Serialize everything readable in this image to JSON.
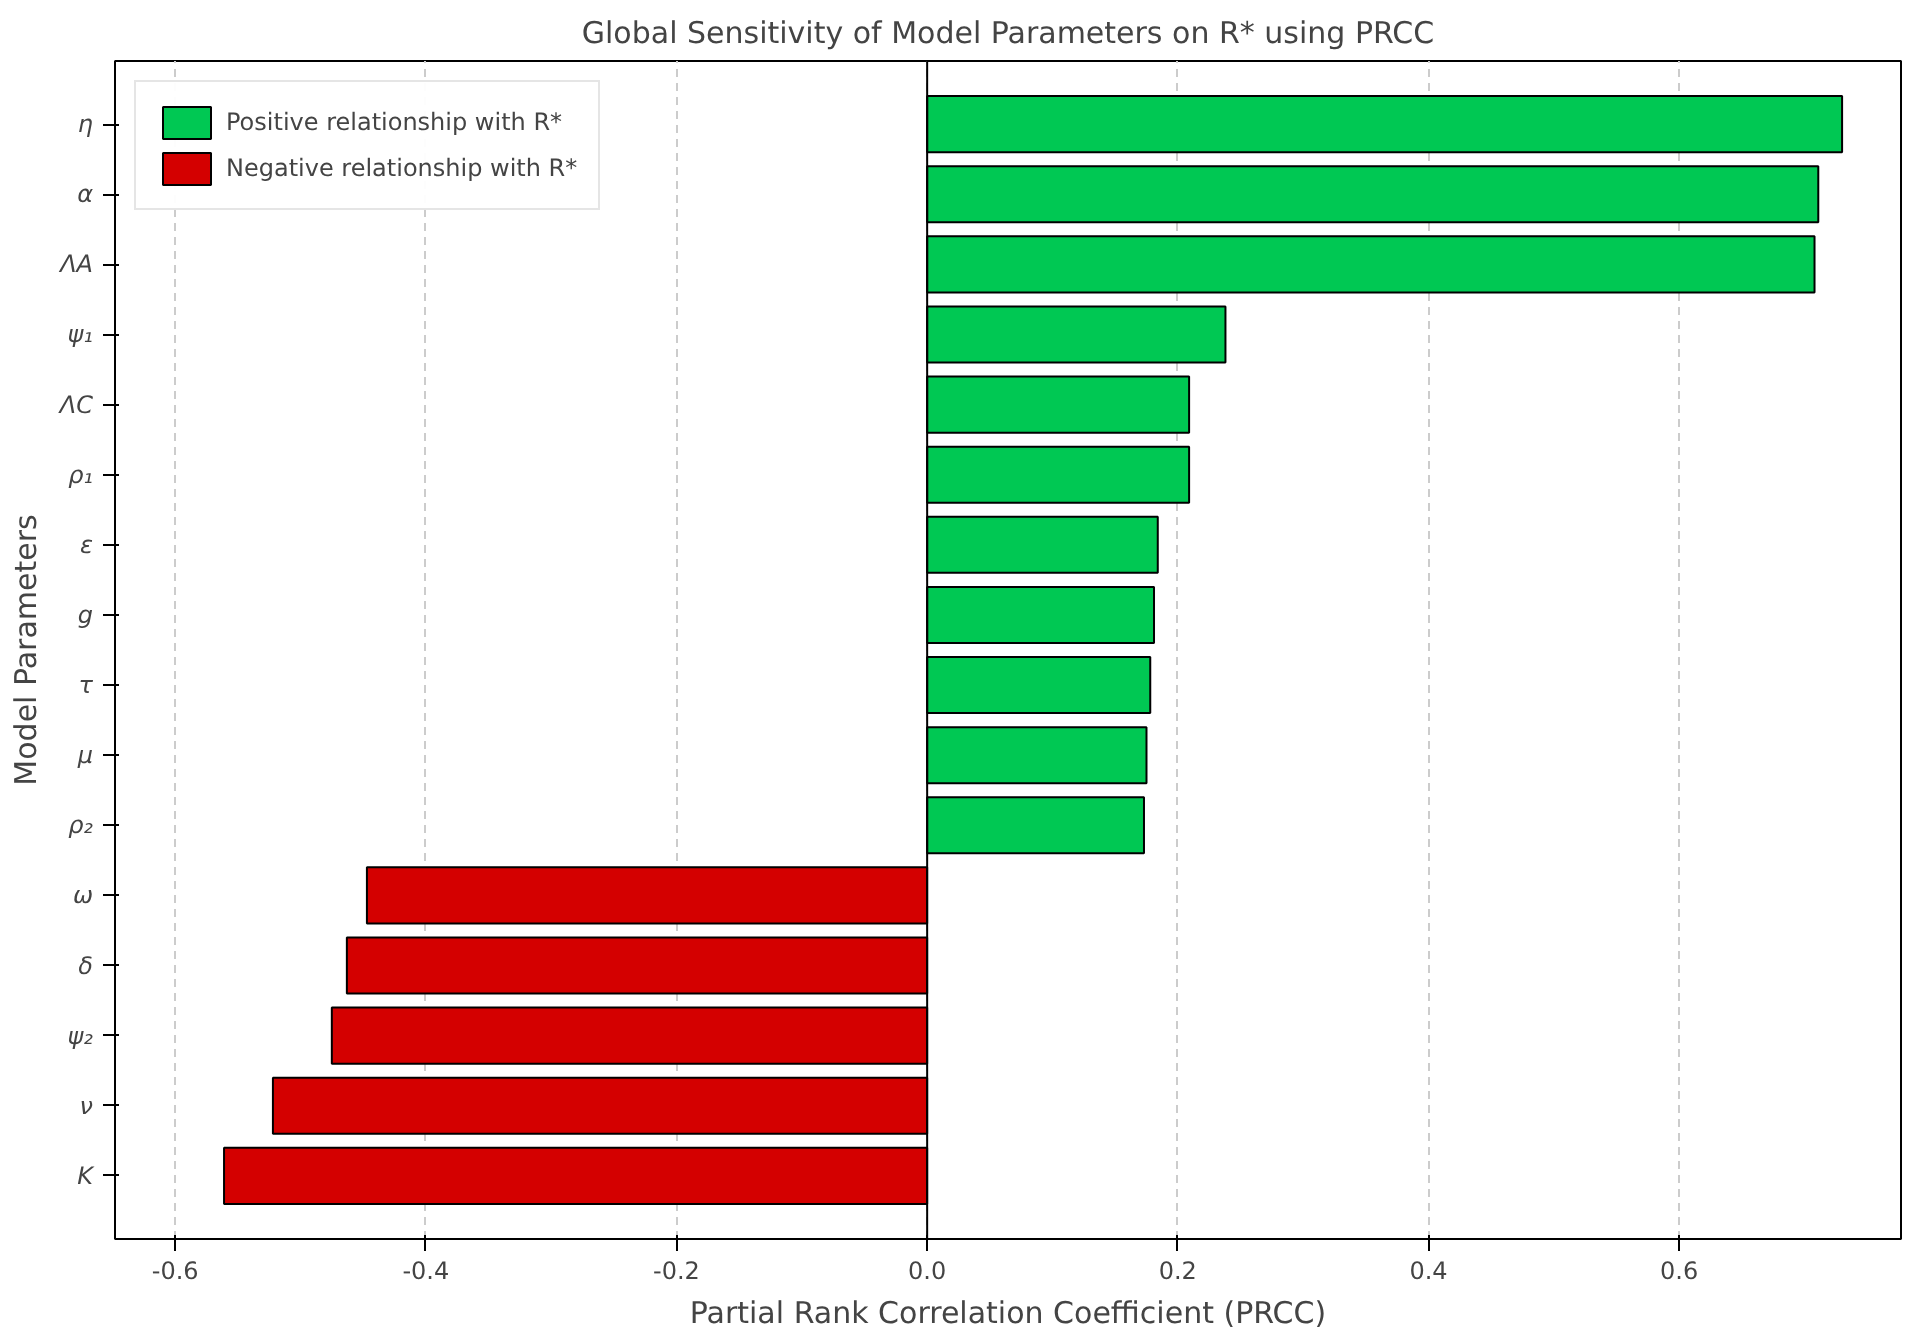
{
  "chart_data": {
    "type": "bar",
    "orientation": "horizontal",
    "title": "Global Sensitivity of Model Parameters on R* using PRCC",
    "xlabel": "Partial Rank Correlation Coefficient (PRCC)",
    "ylabel": "Model Parameters",
    "categories": [
      "η",
      "α",
      "ΛA",
      "ψ₁",
      "ΛC",
      "ρ₁",
      "ε",
      "g",
      "τ",
      "μ",
      "ρ₂",
      "ω",
      "δ",
      "ψ₂",
      "ν",
      "K"
    ],
    "series": [
      {
        "name": "Positive relationship with R*",
        "color": "#00c853",
        "values": [
          0.73,
          0.711,
          0.708,
          0.238,
          0.209,
          0.209,
          0.184,
          0.181,
          0.178,
          0.175,
          0.173,
          null,
          null,
          null,
          null,
          null
        ]
      },
      {
        "name": "Negative relationship with R*",
        "color": "#d40000",
        "values": [
          null,
          null,
          null,
          null,
          null,
          null,
          null,
          null,
          null,
          null,
          null,
          -0.447,
          -0.463,
          -0.475,
          -0.522,
          -0.561
        ]
      }
    ],
    "xlim": [
      -0.648,
      0.777
    ],
    "xticks": [
      -0.6,
      -0.4,
      -0.2,
      {
        "value": 0,
        "label": "0.0"
      },
      0.2,
      0.4,
      0.6
    ],
    "ref_lines": [
      {
        "axis": "x",
        "value": 0,
        "color": "#000000"
      }
    ],
    "grid": "x",
    "legend": "top left"
  }
}
